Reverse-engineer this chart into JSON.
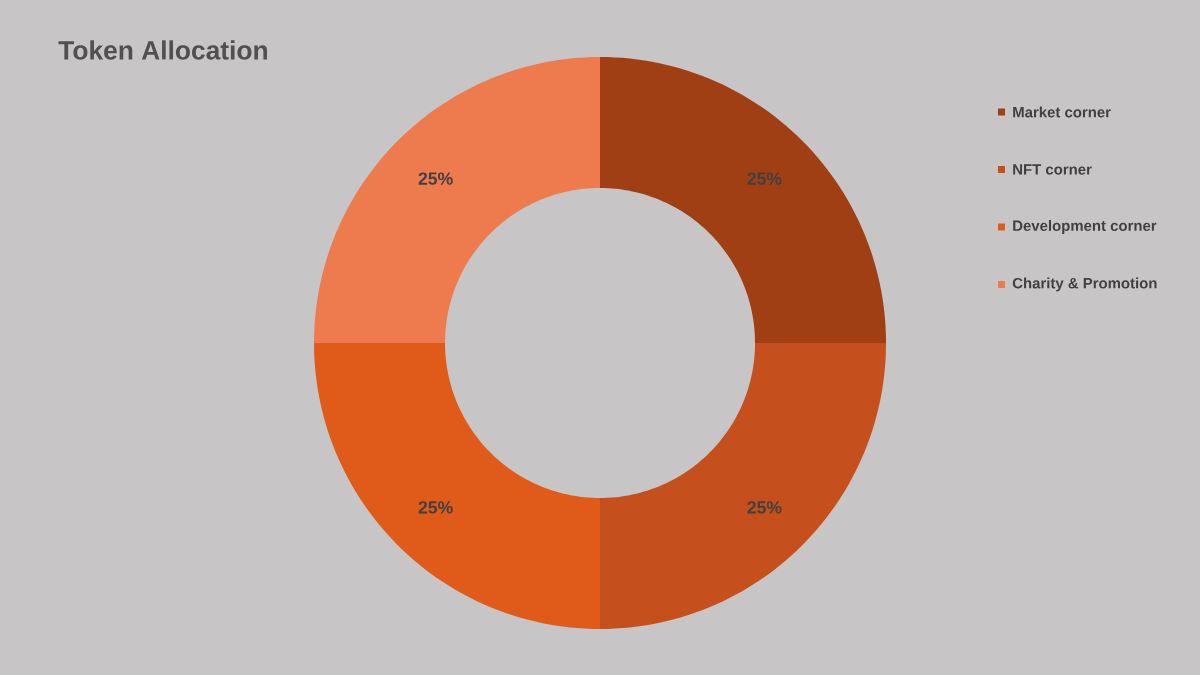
{
  "chart_data": {
    "type": "donut",
    "title": "Token Allocation",
    "categories": [
      "Market corner",
      "NFT corner",
      "Development corner",
      "Charity & Promotion"
    ],
    "values": [
      25,
      25,
      25,
      25
    ],
    "value_labels": [
      "25%",
      "25%",
      "25%",
      "25%"
    ],
    "colors": [
      "#a03f14",
      "#c5501d",
      "#e05a1a",
      "#ee7b4e"
    ],
    "legend": "right"
  }
}
